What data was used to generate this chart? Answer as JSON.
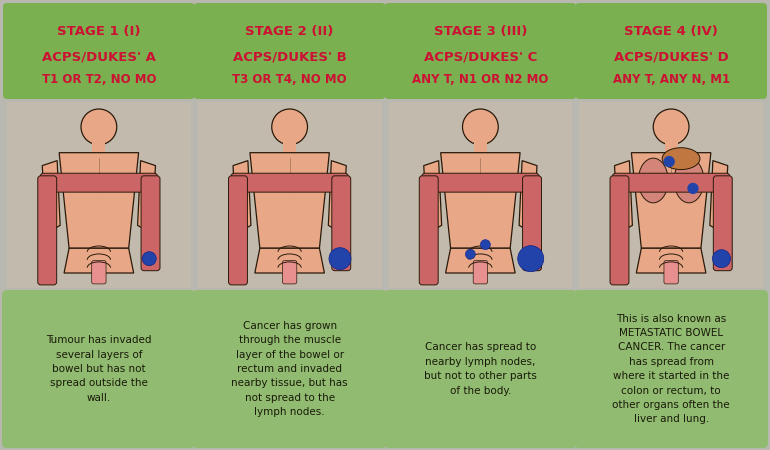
{
  "background_color": "#b8b8b0",
  "header_bg": "#7ab050",
  "body_bg_color": "#d4c0a8",
  "desc_bg": "#90bb70",
  "header_text_color": "#cc1133",
  "desc_text_color": "#1a1a0a",
  "skin_color": "#e8a888",
  "skin_outline": "#2a1a0a",
  "colon_outer": "#cc6666",
  "colon_inner": "#e89090",
  "tumor_color": "#2244aa",
  "stages": [
    {
      "title_line1": "STAGE 1 (I)",
      "title_line2": "ACPS/DUKES' A",
      "title_line3": "T1 OR T2, NO MO",
      "description": "Tumour has invaded\nseveral layers of\nbowel but has not\nspread outside the\nwall.",
      "has_lymph": false,
      "has_organs": false,
      "tumor_size": 7
    },
    {
      "title_line1": "STAGE 2 (II)",
      "title_line2": "ACPS/DUKES' B",
      "title_line3": "T3 OR T4, NO MO",
      "description": "Cancer has grown\nthrough the muscle\nlayer of the bowel or\nrectum and invaded\nnearby tissue, but has\nnot spread to the\nlymph nodes.",
      "has_lymph": false,
      "has_organs": false,
      "tumor_size": 11
    },
    {
      "title_line1": "STAGE 3 (III)",
      "title_line2": "ACPS/DUKES' C",
      "title_line3": "ANY T, N1 OR N2 MO",
      "description": "Cancer has spread to\nnearby lymph nodes,\nbut not to other parts\nof the body.",
      "has_lymph": true,
      "has_organs": false,
      "tumor_size": 13
    },
    {
      "title_line1": "STAGE 4 (IV)",
      "title_line2": "ACPS/DUKES' D",
      "title_line3": "ANY T, ANY N, M1",
      "description": "This is also known as\nMETASTATIC BOWEL\nCANCER. The cancer\nhas spread from\nwhere it started in the\ncolon or rectum, to\nother organs often the\nliver and lung.",
      "has_lymph": false,
      "has_organs": true,
      "tumor_size": 9
    }
  ],
  "figsize": [
    7.7,
    4.5
  ],
  "dpi": 100
}
